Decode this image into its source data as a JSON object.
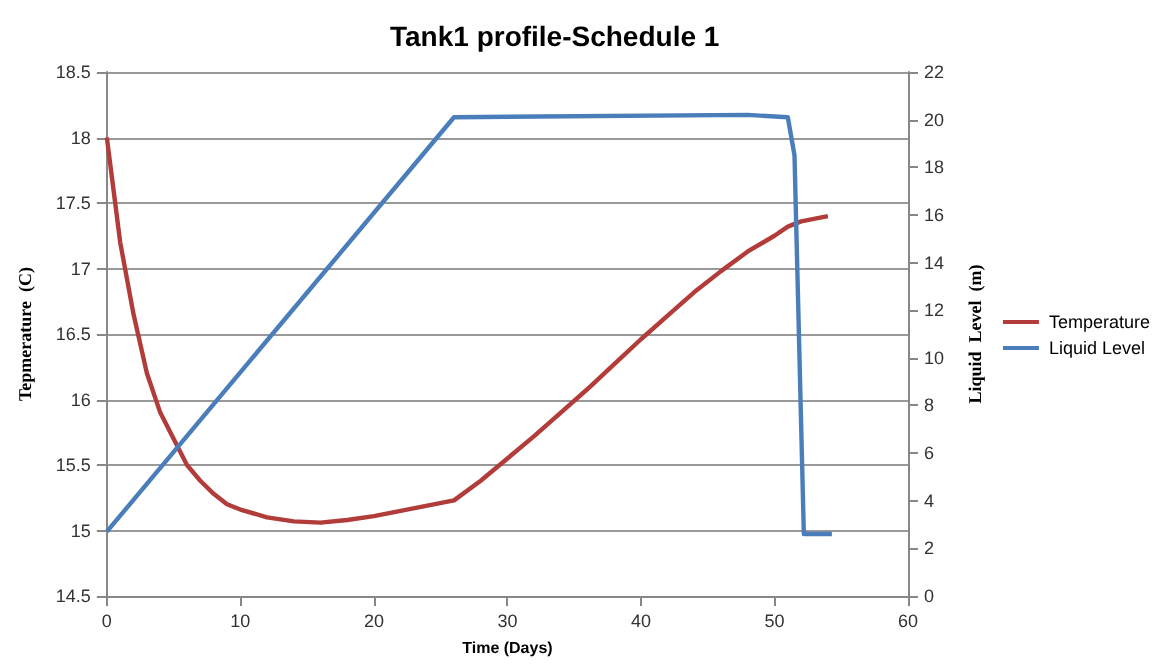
{
  "chart_data": {
    "type": "line",
    "title": "Tank1 profile-Schedule 1",
    "xlabel": "Time (Days)",
    "ylabel": "Tepmerature  (C)",
    "y2label": "Liquid  Level  (m)",
    "xlim": [
      0,
      60
    ],
    "xticks": [
      0,
      10,
      20,
      30,
      40,
      50,
      60
    ],
    "ylim": [
      14.5,
      18.5
    ],
    "yticks": [
      14.5,
      15,
      15.5,
      16,
      16.5,
      17,
      17.5,
      18,
      18.5
    ],
    "y2lim": [
      0,
      22
    ],
    "y2ticks": [
      0,
      2,
      4,
      6,
      8,
      10,
      12,
      14,
      16,
      18,
      20,
      22
    ],
    "grid": "y",
    "legend": "right",
    "marker": "none",
    "line_style": "solid",
    "series": [
      {
        "name": "Temperature",
        "color": "#b13c3a",
        "x": [
          0,
          0.5,
          1,
          2,
          3,
          4,
          5,
          6,
          7,
          8,
          9,
          10,
          12,
          14,
          16,
          18,
          20,
          22,
          24,
          26,
          28,
          30,
          32,
          34,
          36,
          38,
          40,
          42,
          44,
          46,
          48,
          50,
          51,
          52,
          54
        ],
        "values": [
          18,
          17.6,
          17.2,
          16.65,
          16.2,
          15.9,
          15.7,
          15.5,
          15.38,
          15.28,
          15.2,
          15.16,
          15.1,
          15.07,
          15.06,
          15.08,
          15.11,
          15.15,
          15.19,
          15.23,
          15.38,
          15.55,
          15.72,
          15.9,
          16.08,
          16.27,
          16.46,
          16.64,
          16.82,
          16.98,
          17.13,
          17.25,
          17.32,
          17.36,
          17.4
        ]
      },
      {
        "name": "Liquid Level",
        "color": "#4a7ebb",
        "axis": "y2",
        "x": [
          0,
          26,
          48,
          51,
          51.5,
          52.2,
          54.3
        ],
        "values": [
          2.7,
          20.1,
          20.2,
          20.1,
          18.5,
          2.6,
          2.6
        ]
      }
    ]
  }
}
